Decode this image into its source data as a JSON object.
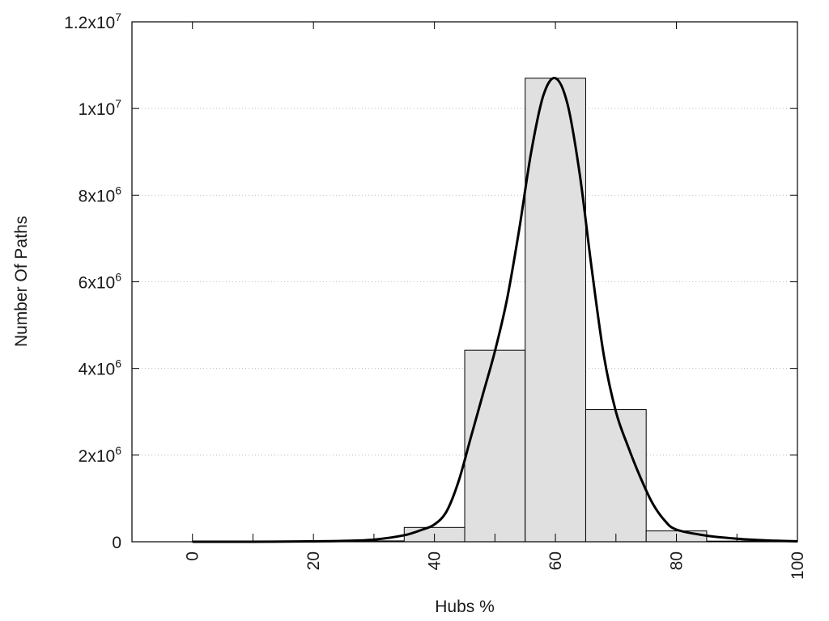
{
  "chart_data": {
    "type": "bar",
    "title": "",
    "xlabel": "Hubs %",
    "ylabel": "Number Of Paths",
    "xlim": [
      -10,
      100
    ],
    "ylim": [
      0,
      12000000
    ],
    "grid": true,
    "legend": "none",
    "x_ticks": [
      {
        "value": 0,
        "label": "0"
      },
      {
        "value": 20,
        "label": "20"
      },
      {
        "value": 40,
        "label": "40"
      },
      {
        "value": 60,
        "label": "60"
      },
      {
        "value": 80,
        "label": "80"
      },
      {
        "value": 100,
        "label": "100"
      }
    ],
    "y_ticks": [
      {
        "value": 0,
        "base": "0",
        "exp": ""
      },
      {
        "value": 2000000,
        "base": "2x10",
        "exp": "6"
      },
      {
        "value": 4000000,
        "base": "4x10",
        "exp": "6"
      },
      {
        "value": 6000000,
        "base": "6x10",
        "exp": "6"
      },
      {
        "value": 8000000,
        "base": "8x10",
        "exp": "6"
      },
      {
        "value": 10000000,
        "base": "1x10",
        "exp": "7"
      },
      {
        "value": 12000000,
        "base": "1.2x10",
        "exp": "7"
      }
    ],
    "bars": [
      {
        "x": 0,
        "value": 0
      },
      {
        "x": 10,
        "value": 0
      },
      {
        "x": 20,
        "value": 0
      },
      {
        "x": 30,
        "value": 20000
      },
      {
        "x": 40,
        "value": 330000
      },
      {
        "x": 50,
        "value": 4420000
      },
      {
        "x": 60,
        "value": 10700000
      },
      {
        "x": 70,
        "value": 3050000
      },
      {
        "x": 80,
        "value": 250000
      },
      {
        "x": 90,
        "value": 15000
      }
    ],
    "bin_width": 10,
    "curve": [
      {
        "x": 0,
        "y": 0
      },
      {
        "x": 10,
        "y": 0
      },
      {
        "x": 20,
        "y": 10000
      },
      {
        "x": 25,
        "y": 20000
      },
      {
        "x": 30,
        "y": 50000
      },
      {
        "x": 35,
        "y": 150000
      },
      {
        "x": 38,
        "y": 280000
      },
      {
        "x": 40,
        "y": 400000
      },
      {
        "x": 42,
        "y": 700000
      },
      {
        "x": 44,
        "y": 1400000
      },
      {
        "x": 46,
        "y": 2400000
      },
      {
        "x": 48,
        "y": 3400000
      },
      {
        "x": 50,
        "y": 4400000
      },
      {
        "x": 52,
        "y": 5600000
      },
      {
        "x": 54,
        "y": 7200000
      },
      {
        "x": 56,
        "y": 9000000
      },
      {
        "x": 58,
        "y": 10300000
      },
      {
        "x": 60,
        "y": 10700000
      },
      {
        "x": 62,
        "y": 10100000
      },
      {
        "x": 64,
        "y": 8500000
      },
      {
        "x": 66,
        "y": 6300000
      },
      {
        "x": 68,
        "y": 4300000
      },
      {
        "x": 70,
        "y": 3000000
      },
      {
        "x": 72,
        "y": 2200000
      },
      {
        "x": 74,
        "y": 1500000
      },
      {
        "x": 76,
        "y": 900000
      },
      {
        "x": 78,
        "y": 500000
      },
      {
        "x": 80,
        "y": 280000
      },
      {
        "x": 85,
        "y": 140000
      },
      {
        "x": 90,
        "y": 70000
      },
      {
        "x": 95,
        "y": 30000
      },
      {
        "x": 100,
        "y": 10000
      }
    ],
    "colors": {
      "bar_fill": "#e0e0e0",
      "bar_stroke": "#000000",
      "curve": "#000000",
      "grid": "#bbbbbb"
    }
  }
}
